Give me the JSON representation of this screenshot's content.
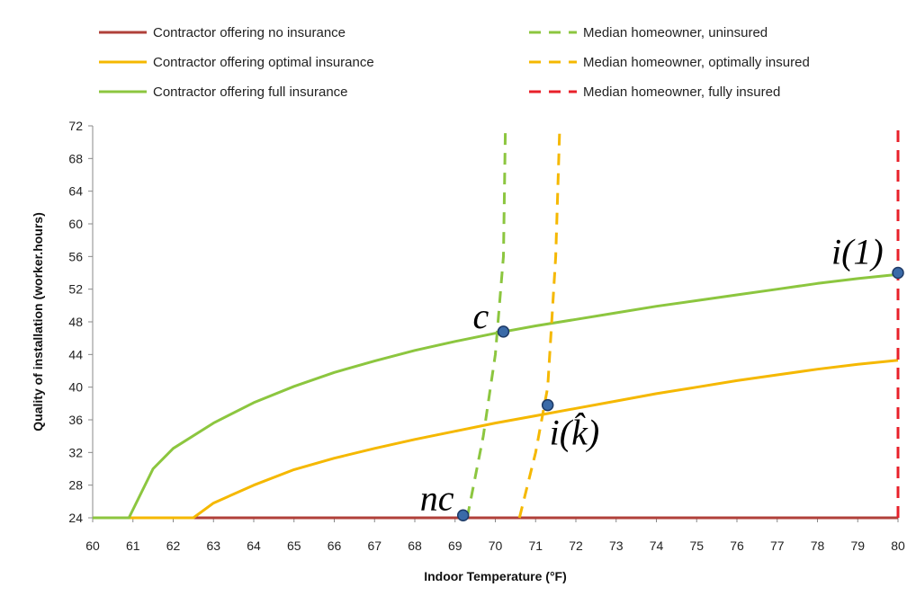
{
  "chart_data": {
    "type": "line",
    "title": "",
    "xlabel": "Indoor Temperature (°F)",
    "ylabel": "Quality of installation (worker.hours)",
    "xlim": [
      60,
      80
    ],
    "ylim": [
      24,
      72
    ],
    "xticks": [
      "60",
      "61",
      "62",
      "63",
      "64",
      "65",
      "66",
      "67",
      "68",
      "69",
      "70",
      "71",
      "72",
      "73",
      "74",
      "75",
      "76",
      "77",
      "78",
      "79",
      "80"
    ],
    "yticks": [
      "24",
      "28",
      "32",
      "36",
      "40",
      "44",
      "48",
      "52",
      "56",
      "60",
      "64",
      "68",
      "72"
    ],
    "grid": false,
    "legend_position": "top",
    "series": [
      {
        "name": "Contractor offering no insurance",
        "color": "#b0403a",
        "style": "solid",
        "x": [
          60,
          80
        ],
        "y": [
          24,
          24
        ]
      },
      {
        "name": "Contractor offering optimal insurance",
        "color": "#f5b800",
        "style": "solid",
        "x": [
          60,
          62.5,
          63,
          64,
          65,
          66,
          67,
          68,
          69,
          70,
          71,
          72,
          73,
          74,
          75,
          76,
          77,
          78,
          79,
          80
        ],
        "y": [
          24,
          24,
          25.8,
          28.0,
          29.9,
          31.3,
          32.5,
          33.6,
          34.6,
          35.6,
          36.5,
          37.4,
          38.3,
          39.2,
          40.0,
          40.8,
          41.5,
          42.2,
          42.8,
          43.3
        ]
      },
      {
        "name": "Contractor offering full insurance",
        "color": "#8cc63f",
        "style": "solid",
        "x": [
          60,
          60.9,
          61.5,
          62,
          63,
          64,
          65,
          66,
          67,
          68,
          69,
          70,
          71,
          72,
          73,
          74,
          75,
          76,
          77,
          78,
          79,
          80
        ],
        "y": [
          24,
          24,
          30.0,
          32.5,
          35.6,
          38.1,
          40.1,
          41.8,
          43.2,
          44.5,
          45.6,
          46.6,
          47.5,
          48.3,
          49.1,
          49.9,
          50.6,
          51.3,
          52.0,
          52.7,
          53.3,
          53.8
        ]
      },
      {
        "name": "Median homeowner, uninsured",
        "color": "#8cc63f",
        "style": "dashed",
        "x": [
          69.3,
          69.7,
          70.0,
          70.2,
          70.25
        ],
        "y": [
          24,
          34,
          44,
          56,
          72
        ]
      },
      {
        "name": "Median homeowner, optimally insured",
        "color": "#f5b800",
        "style": "dashed",
        "x": [
          70.6,
          71.0,
          71.3,
          71.5,
          71.6
        ],
        "y": [
          24,
          32,
          40,
          56,
          72
        ]
      },
      {
        "name": "Median homeowner, fully insured",
        "color": "#e8202a",
        "style": "dashed",
        "x": [
          80,
          80
        ],
        "y": [
          24,
          72
        ]
      }
    ],
    "points": [
      {
        "x": 69.2,
        "y": 24.3,
        "label": "nc"
      },
      {
        "x": 70.2,
        "y": 46.8,
        "label": "c"
      },
      {
        "x": 71.3,
        "y": 37.8,
        "label": "i(k̂)"
      },
      {
        "x": 80.0,
        "y": 54.0,
        "label": "i(1)"
      }
    ],
    "point_color": "#3a6aa8"
  }
}
